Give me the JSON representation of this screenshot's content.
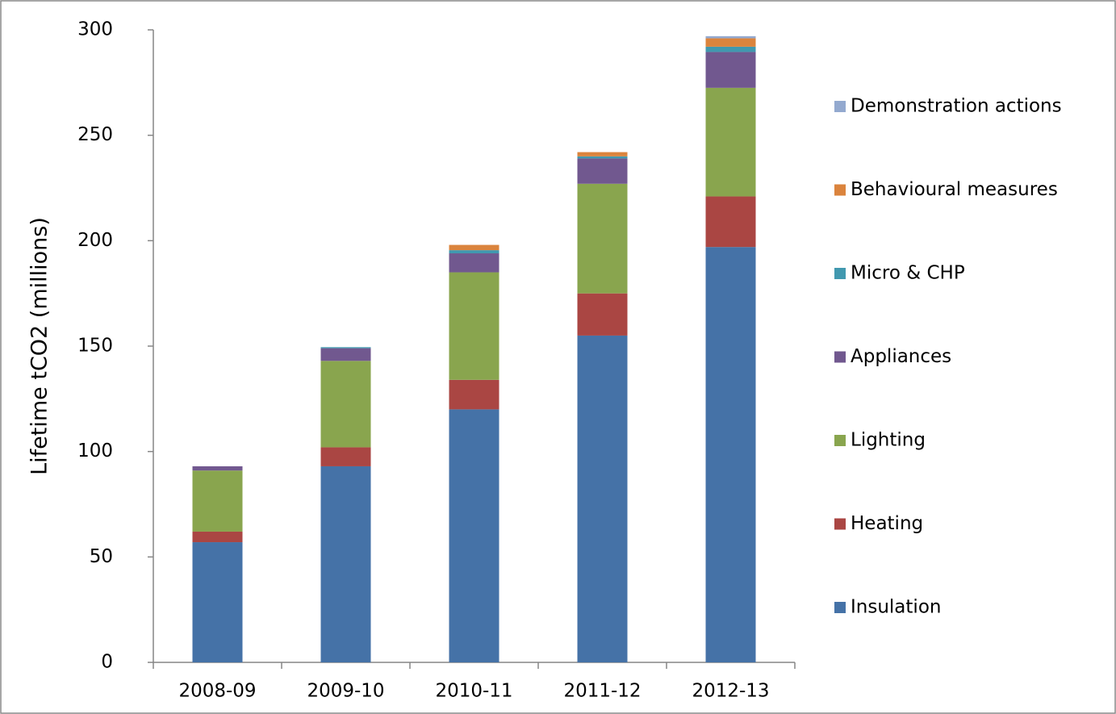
{
  "chart_data": {
    "type": "stacked-bar",
    "y_label": "Lifetime tCO2 (millions)",
    "categories": [
      "2008-09",
      "2009-10",
      "2010-11",
      "2011-12",
      "2012-13"
    ],
    "series": [
      {
        "name": "Insulation",
        "color": "#4572A7",
        "values": [
          57,
          93,
          120,
          155,
          197
        ]
      },
      {
        "name": "Heating",
        "color": "#AA4643",
        "values": [
          5,
          9,
          14,
          20,
          24
        ]
      },
      {
        "name": "Lighting",
        "color": "#89A54E",
        "values": [
          29,
          41,
          51,
          52,
          51.5
        ]
      },
      {
        "name": "Appliances",
        "color": "#71588F",
        "values": [
          2,
          6,
          9,
          12,
          17
        ]
      },
      {
        "name": "Micro & CHP",
        "color": "#4198AF",
        "values": [
          0,
          0.5,
          1.5,
          1,
          2.5
        ]
      },
      {
        "name": "Behavioural measures",
        "color": "#DB843D",
        "values": [
          0,
          0,
          2.5,
          2,
          4
        ]
      },
      {
        "name": "Demonstration actions",
        "color": "#93A9CF",
        "values": [
          0,
          0,
          0,
          0,
          1
        ]
      }
    ],
    "ylim": [
      0,
      300
    ],
    "yticks": [
      0,
      50,
      100,
      150,
      200,
      250,
      300
    ],
    "grid": false,
    "legend_position": "right"
  }
}
